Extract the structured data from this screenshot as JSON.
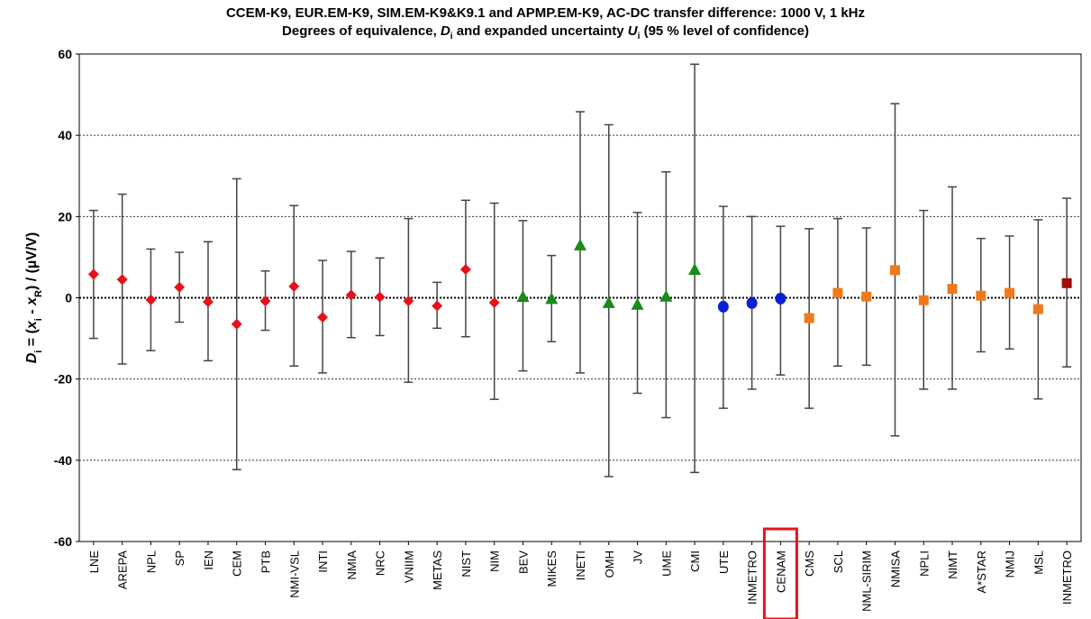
{
  "chart_data": {
    "type": "scatter",
    "title": "CCEM-K9, EUR.EM-K9, SIM.EM-K9&K9.1 and APMP.EM-K9, AC-DC transfer difference: 1000 V, 1 kHz",
    "subtitle": "Degrees of equivalence, Di and expanded uncertainty Ui (95 % level of confidence)",
    "ylabel": "Di = (xi - xR) / (µV/V)",
    "xlabel": "",
    "ylim": [
      -60,
      60
    ],
    "yticks": [
      -60,
      -40,
      -20,
      0,
      20,
      40,
      60
    ],
    "grid": "horizontal dotted at ±20, ±40",
    "categories": [
      "LNE",
      "AREPA",
      "NPL",
      "SP",
      "IEN",
      "CEM",
      "PTB",
      "NMI-VSL",
      "INTI",
      "NMIA",
      "NRC",
      "VNIIM",
      "METAS",
      "NIST",
      "NIM",
      "BEV",
      "MIKES",
      "INETI",
      "OMH",
      "JV",
      "UME",
      "CMI",
      "UTE",
      "INMETRO",
      "CENAM",
      "CMS",
      "SCL",
      "NML-SIRIM",
      "NMISA",
      "NPLI",
      "NIMT",
      "A*STAR",
      "NMIJ",
      "MSL",
      "INMETRO"
    ],
    "highlighted_category": "CENAM",
    "series": [
      {
        "marker": "diamond",
        "color": "#e8111a",
        "categories": [
          "LNE",
          "AREPA",
          "NPL",
          "SP",
          "IEN",
          "CEM",
          "PTB",
          "NMI-VSL",
          "INTI",
          "NMIA",
          "NRC",
          "VNIIM",
          "METAS",
          "NIST",
          "NIM"
        ],
        "values": [
          5.8,
          4.5,
          -0.5,
          2.6,
          -1.0,
          -6.5,
          -0.8,
          2.8,
          -4.8,
          0.7,
          0.2,
          -0.8,
          -2.0,
          7.0,
          -1.2
        ],
        "upper": [
          21.5,
          25.5,
          12.0,
          11.2,
          13.8,
          29.3,
          6.6,
          22.7,
          9.2,
          11.4,
          9.8,
          19.5,
          3.8,
          24.0,
          23.3
        ],
        "lower": [
          -10.0,
          -16.3,
          -13.0,
          -6.0,
          -15.5,
          -42.3,
          -8.0,
          -16.8,
          -18.5,
          -9.8,
          -9.3,
          -20.8,
          -7.5,
          -9.6,
          -25.0
        ]
      },
      {
        "marker": "triangle",
        "color": "#1a8a1a",
        "categories": [
          "BEV",
          "MIKES",
          "INETI",
          "OMH",
          "JV",
          "UME",
          "CMI"
        ],
        "values": [
          0.3,
          -0.2,
          13.0,
          -1.2,
          -1.6,
          0.4,
          7.0
        ],
        "upper": [
          19.0,
          10.4,
          45.8,
          42.6,
          21.0,
          31.0,
          57.5
        ],
        "lower": [
          -18.0,
          -10.8,
          -18.5,
          -44.0,
          -23.5,
          -29.5,
          -43.0
        ]
      },
      {
        "marker": "circle",
        "color": "#0a1fd4",
        "categories": [
          "UTE",
          "INMETRO",
          "CENAM"
        ],
        "values": [
          -2.2,
          -1.3,
          -0.2
        ],
        "upper": [
          22.5,
          20.0,
          17.6
        ],
        "lower": [
          -27.2,
          -22.5,
          -19.0
        ]
      },
      {
        "marker": "square",
        "color": "#f07a1a",
        "categories": [
          "CMS",
          "SCL",
          "NML-SIRIM",
          "NMISA",
          "NPLI",
          "NIMT",
          "A*STAR",
          "NMIJ",
          "MSL"
        ],
        "values": [
          -5.0,
          1.2,
          0.3,
          6.8,
          -0.6,
          2.2,
          0.5,
          1.2,
          -2.8
        ],
        "upper": [
          17.0,
          19.5,
          17.2,
          47.8,
          21.5,
          27.3,
          14.6,
          15.2,
          19.2
        ],
        "lower": [
          -27.2,
          -16.8,
          -16.6,
          -34.0,
          -22.5,
          -22.5,
          -13.3,
          -12.6,
          -24.9
        ]
      },
      {
        "marker": "square",
        "color": "#a00a0a",
        "categories": [
          "INMETRO"
        ],
        "values": [
          3.6
        ],
        "upper": [
          24.5
        ],
        "lower": [
          -17.0
        ]
      }
    ]
  }
}
